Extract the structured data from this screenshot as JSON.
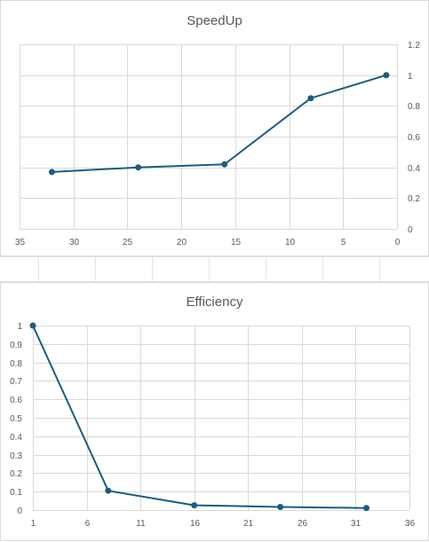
{
  "chart_data": [
    {
      "type": "line",
      "title": "SpeedUp",
      "x": [
        32,
        24,
        16,
        8,
        1
      ],
      "series": [
        {
          "values": [
            0.37,
            0.4,
            0.42,
            0.85,
            1.0
          ],
          "color": "#1f5c7a"
        }
      ],
      "xlim": [
        35,
        0
      ],
      "x_reversed": true,
      "x_ticks": [
        "35",
        "30",
        "25",
        "20",
        "15",
        "10",
        "5",
        "0"
      ],
      "ylim": [
        0,
        1.2
      ],
      "y_ticks": [
        "0",
        "0.2",
        "0.4",
        "0.6",
        "0.8",
        "1",
        "1.2"
      ],
      "y_axis_side": "right",
      "grid": true
    },
    {
      "type": "line",
      "title": "Efficiency",
      "x": [
        1,
        8,
        16,
        24,
        32
      ],
      "series": [
        {
          "values": [
            1.0,
            0.105,
            0.026,
            0.017,
            0.011
          ],
          "color": "#1f5c7a"
        }
      ],
      "xlim": [
        1,
        36
      ],
      "x_ticks": [
        "1",
        "6",
        "11",
        "16",
        "21",
        "26",
        "31",
        "36"
      ],
      "ylim": [
        0,
        1
      ],
      "y_ticks": [
        "0",
        "0.1",
        "0.2",
        "0.3",
        "0.4",
        "0.5",
        "0.6",
        "0.7",
        "0.8",
        "0.9",
        "1"
      ],
      "y_axis_side": "left",
      "grid": true
    }
  ]
}
